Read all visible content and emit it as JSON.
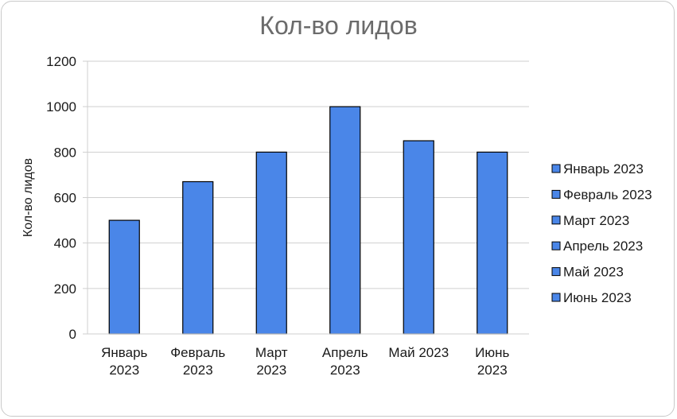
{
  "chart_data": {
    "type": "bar",
    "title": "Кол-во лидов",
    "xlabel": "",
    "ylabel": "Кол-во лидов",
    "categories": [
      [
        "Январь",
        "2023"
      ],
      [
        "Февраль",
        "2023"
      ],
      [
        "Март",
        "2023"
      ],
      [
        "Апрель",
        "2023"
      ],
      [
        "Май 2023"
      ],
      [
        "Июнь",
        "2023"
      ]
    ],
    "values": [
      500,
      670,
      800,
      1000,
      850,
      800
    ],
    "ylim": [
      0,
      1200
    ],
    "yticks": [
      "0",
      "200",
      "400",
      "600",
      "800",
      "1000",
      "1200"
    ],
    "grid": true,
    "legend_position": "right",
    "legend": [
      "Январь 2023",
      "Февраль 2023",
      "Март 2023",
      "Апрель  2023",
      "Май 2023",
      "Июнь 2023"
    ],
    "colors": {
      "bar_fill": "#4a86e8",
      "bar_stroke": "#000000",
      "grid": "#cfcfcf",
      "title": "#6b6b6b"
    }
  }
}
